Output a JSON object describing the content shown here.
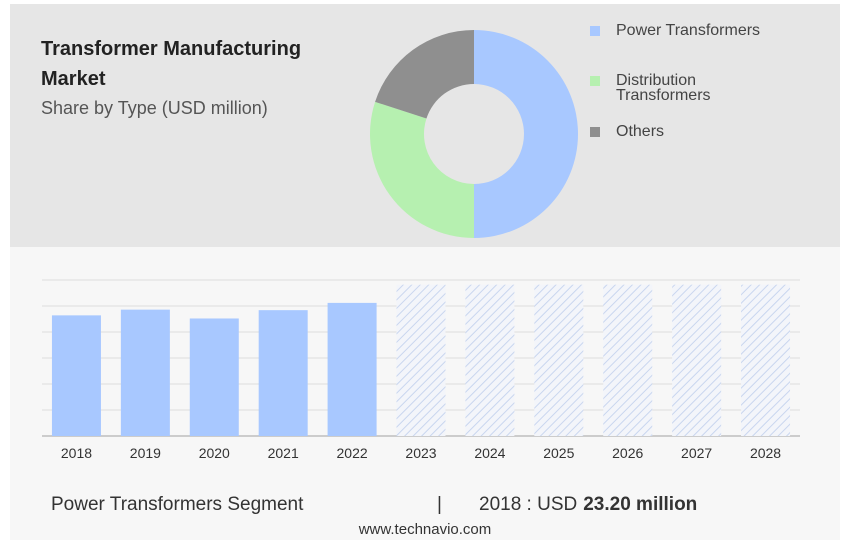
{
  "header": {
    "title": "Transformer Manufacturing Market",
    "subtitle": "Share by Type (USD million)"
  },
  "legend": [
    {
      "label": "Power Transformers",
      "color": "#a8c8ff"
    },
    {
      "label": "Distribution Transformers",
      "color": "#b6f0b0"
    },
    {
      "label": "Others",
      "color": "#8f8f8f"
    }
  ],
  "footer": {
    "segment": "Power Transformers Segment",
    "separator": "|",
    "stat_prefix": "2018 : USD",
    "stat_value": "23.20 million",
    "source": "www.technavio.com"
  },
  "chart_data": [
    {
      "type": "pie",
      "labels": [
        "Power Transformers",
        "Distribution Transformers",
        "Others"
      ],
      "values": [
        50,
        30,
        20
      ],
      "colors": [
        "#a8c8ff",
        "#b6f0b0",
        "#8f8f8f"
      ]
    },
    {
      "type": "bar",
      "categories": [
        "2018",
        "2019",
        "2020",
        "2021",
        "2022",
        "2023",
        "2024",
        "2025",
        "2026",
        "2027",
        "2028"
      ],
      "values": [
        23.2,
        24.3,
        22.6,
        24.2,
        25.6,
        null,
        null,
        null,
        null,
        null,
        null
      ],
      "forecast_from": "2023",
      "ylim": [
        0,
        30
      ],
      "grid": true,
      "y_tick_labels_shown": false,
      "bar_color": "#a8c8ff"
    }
  ]
}
